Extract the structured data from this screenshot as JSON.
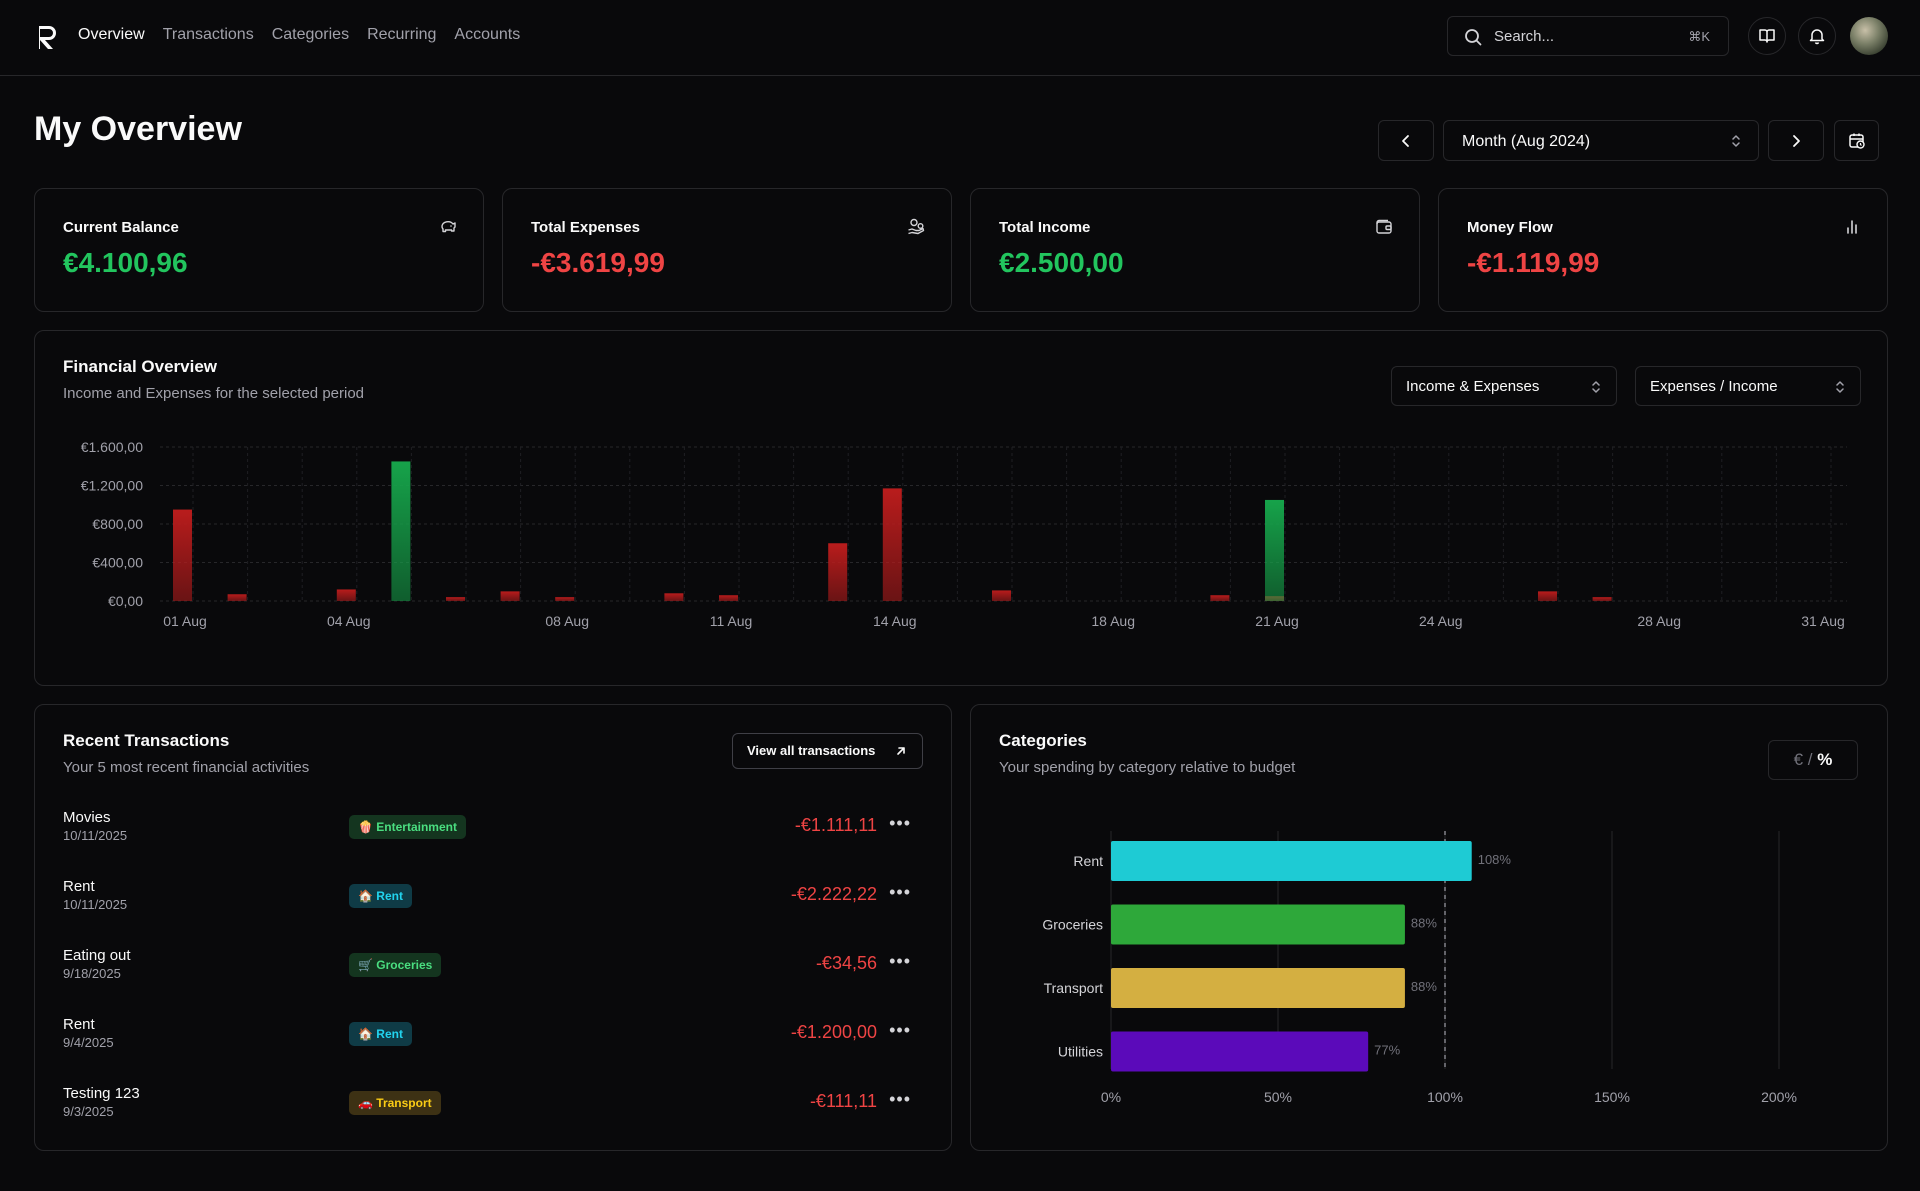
{
  "nav": {
    "items": [
      "Overview",
      "Transactions",
      "Categories",
      "Recurring",
      "Accounts"
    ],
    "active": "Overview"
  },
  "search": {
    "placeholder": "Search...",
    "shortcut": "⌘K"
  },
  "header_icons": [
    "book-icon",
    "bell-icon",
    "avatar"
  ],
  "page": {
    "title": "My Overview",
    "period": "Month (Aug 2024)"
  },
  "stats": [
    {
      "title": "Current Balance",
      "value": "€4.100,96",
      "icon": "piggy-bank-icon",
      "color": "#22c55e"
    },
    {
      "title": "Total Expenses",
      "value": "-€3.619,99",
      "icon": "hand-coins-icon",
      "color": "#ef4444"
    },
    {
      "title": "Total Income",
      "value": "€2.500,00",
      "icon": "wallet-icon",
      "color": "#22c55e"
    },
    {
      "title": "Money Flow",
      "value": "-€1.119,99",
      "icon": "bar-chart-icon",
      "color": "#ef4444"
    }
  ],
  "financial": {
    "title": "Financial Overview",
    "subtitle": "Income and Expenses for the selected period",
    "select_type": "Income & Expenses",
    "select_view": "Expenses / Income"
  },
  "chart_data": [
    {
      "type": "bar",
      "ylim": [
        0,
        1600
      ],
      "yticks": [
        "€1.600,00",
        "€1.200,00",
        "€800,00",
        "€400,00",
        "€0,00"
      ],
      "xtick_labels": [
        "01 Aug",
        "04 Aug",
        "08 Aug",
        "11 Aug",
        "14 Aug",
        "18 Aug",
        "21 Aug",
        "24 Aug",
        "28 Aug",
        "31 Aug"
      ],
      "x": [
        "01 Aug",
        "02 Aug",
        "03 Aug",
        "04 Aug",
        "05 Aug",
        "06 Aug",
        "07 Aug",
        "08 Aug",
        "09 Aug",
        "10 Aug",
        "11 Aug",
        "12 Aug",
        "13 Aug",
        "14 Aug",
        "15 Aug",
        "16 Aug",
        "17 Aug",
        "18 Aug",
        "19 Aug",
        "20 Aug",
        "21 Aug",
        "22 Aug",
        "23 Aug",
        "24 Aug",
        "25 Aug",
        "26 Aug",
        "27 Aug",
        "28 Aug",
        "29 Aug",
        "30 Aug",
        "31 Aug"
      ],
      "series": [
        {
          "color": "#b91c1c",
          "values": [
            950,
            70,
            0,
            120,
            0,
            40,
            100,
            40,
            0,
            80,
            60,
            0,
            600,
            1170,
            0,
            110,
            0,
            0,
            0,
            60,
            50,
            0,
            0,
            0,
            0,
            100,
            40,
            0,
            0,
            0,
            0
          ]
        },
        {
          "color": "#16a34a",
          "values": [
            0,
            0,
            0,
            0,
            1450,
            0,
            0,
            0,
            0,
            0,
            0,
            0,
            0,
            0,
            0,
            0,
            0,
            0,
            0,
            0,
            1050,
            0,
            0,
            0,
            0,
            0,
            0,
            0,
            0,
            0,
            0
          ]
        }
      ]
    },
    {
      "type": "bar",
      "orientation": "horizontal",
      "categories": [
        "Rent",
        "Groceries",
        "Transport",
        "Utilities"
      ],
      "values": [
        108,
        88,
        88,
        77
      ],
      "value_labels": [
        "108%",
        "88%",
        "88%",
        "77%"
      ],
      "colors": [
        "#1ecbd4",
        "#2ea83a",
        "#d4af41",
        "#5b0aba"
      ],
      "xlim": [
        0,
        200
      ],
      "xtick_labels": [
        "0%",
        "50%",
        "100%",
        "150%",
        "200%"
      ],
      "reference_line": 100
    }
  ],
  "transactions": {
    "title": "Recent Transactions",
    "subtitle": "Your 5 most recent financial activities",
    "view_all": "View all transactions",
    "rows": [
      {
        "name": "Movies",
        "date": "10/11/2025",
        "category": "🍿 Entertainment",
        "amount": "-€1.111,11",
        "badge_bg": "#14351f",
        "badge_fg": "#4ade80"
      },
      {
        "name": "Rent",
        "date": "10/11/2025",
        "category": "🏠 Rent",
        "amount": "-€2.222,22",
        "badge_bg": "#0f3b46",
        "badge_fg": "#22d3ee"
      },
      {
        "name": "Eating out",
        "date": "9/18/2025",
        "category": "🛒 Groceries",
        "amount": "-€34,56",
        "badge_bg": "#14351f",
        "badge_fg": "#4ade80"
      },
      {
        "name": "Rent",
        "date": "9/4/2025",
        "category": "🏠 Rent",
        "amount": "-€1.200,00",
        "badge_bg": "#0f3b46",
        "badge_fg": "#22d3ee"
      },
      {
        "name": "Testing 123",
        "date": "9/3/2025",
        "category": "🚗 Transport",
        "amount": "-€111,11",
        "badge_bg": "#3d3114",
        "badge_fg": "#facc15"
      }
    ]
  },
  "categories": {
    "title": "Categories",
    "subtitle": "Your spending by category relative to budget",
    "toggle_euro": "€",
    "toggle_sep": "/",
    "toggle_pct": "%"
  }
}
